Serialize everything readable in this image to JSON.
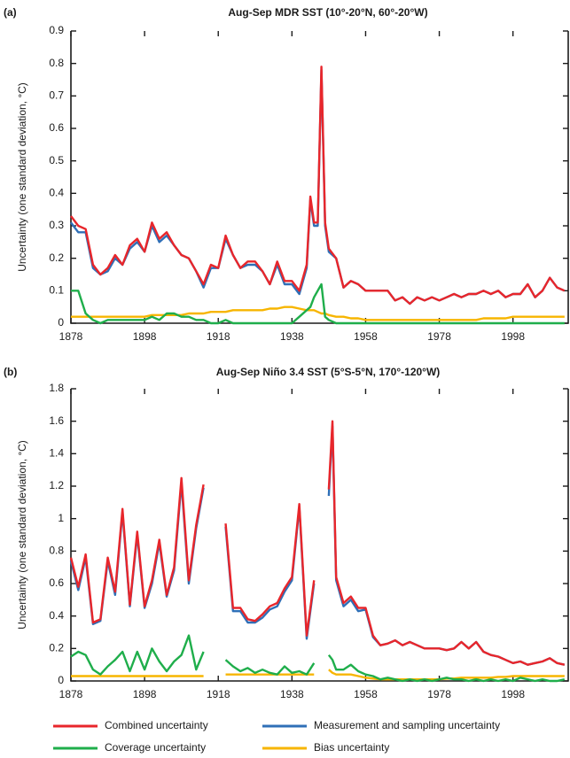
{
  "chart_data": [
    {
      "type": "line",
      "panel_label": "(a)",
      "title": "Aug-Sep MDR SST (10°-20°N, 60°-20°W)",
      "y_label": "Uncertainty (one standard deviation, °C)",
      "x": [
        1878,
        1880,
        1882,
        1884,
        1886,
        1888,
        1890,
        1892,
        1894,
        1896,
        1898,
        1900,
        1902,
        1904,
        1906,
        1908,
        1910,
        1912,
        1914,
        1916,
        1918,
        1920,
        1922,
        1924,
        1926,
        1928,
        1930,
        1932,
        1934,
        1936,
        1938,
        1940,
        1942,
        1943,
        1944,
        1945,
        1946,
        1947,
        1948,
        1950,
        1952,
        1954,
        1956,
        1958,
        1960,
        1962,
        1964,
        1966,
        1968,
        1970,
        1972,
        1974,
        1976,
        1978,
        1980,
        1982,
        1984,
        1986,
        1988,
        1990,
        1992,
        1994,
        1996,
        1998,
        2000,
        2002,
        2004,
        2006,
        2008,
        2010,
        2012
      ],
      "xlim": [
        1878,
        2013
      ],
      "xticks": [
        1878,
        1898,
        1918,
        1938,
        1958,
        1978,
        1998
      ],
      "ylim": [
        0,
        0.9
      ],
      "yticks": [
        0,
        0.1,
        0.2,
        0.3,
        0.4,
        0.5,
        0.6,
        0.7,
        0.8,
        0.9
      ],
      "series": [
        {
          "name": "Combined uncertainty",
          "color": "#e8262b",
          "values": [
            0.33,
            0.3,
            0.29,
            0.18,
            0.15,
            0.17,
            0.21,
            0.18,
            0.24,
            0.26,
            0.22,
            0.31,
            0.26,
            0.28,
            0.24,
            0.21,
            0.2,
            0.16,
            0.12,
            0.18,
            0.17,
            0.27,
            0.21,
            0.17,
            0.19,
            0.19,
            0.16,
            0.12,
            0.19,
            0.13,
            0.13,
            0.1,
            0.18,
            0.39,
            0.31,
            0.31,
            0.79,
            0.31,
            0.23,
            0.2,
            0.11,
            0.13,
            0.12,
            0.1,
            0.1,
            0.1,
            0.1,
            0.07,
            0.08,
            0.06,
            0.08,
            0.07,
            0.08,
            0.07,
            0.08,
            0.09,
            0.08,
            0.09,
            0.09,
            0.1,
            0.09,
            0.1,
            0.08,
            0.09,
            0.09,
            0.12,
            0.08,
            0.1,
            0.14,
            0.11,
            0.1
          ]
        },
        {
          "name": "Measurement and sampling uncertainty",
          "color": "#2f6fb7",
          "values": [
            0.31,
            0.28,
            0.28,
            0.17,
            0.15,
            0.16,
            0.2,
            0.18,
            0.23,
            0.25,
            0.22,
            0.3,
            0.25,
            0.27,
            0.24,
            0.21,
            0.2,
            0.16,
            0.11,
            0.17,
            0.17,
            0.26,
            0.21,
            0.17,
            0.18,
            0.18,
            0.16,
            0.12,
            0.18,
            0.12,
            0.12,
            0.09,
            0.17,
            0.38,
            0.3,
            0.3,
            0.78,
            0.3,
            0.22,
            0.2,
            0.11,
            0.13,
            0.12,
            0.1,
            0.1,
            0.1,
            0.1,
            0.07,
            0.08,
            0.06,
            0.08,
            0.07,
            0.08,
            0.07,
            0.08,
            0.09,
            0.08,
            0.09,
            0.09,
            0.1,
            0.09,
            0.1,
            0.08,
            0.09,
            0.09,
            0.12,
            0.08,
            0.1,
            0.14,
            0.11,
            0.1
          ]
        },
        {
          "name": "Coverage uncertainty",
          "color": "#1fae4b",
          "values": [
            0.1,
            0.1,
            0.03,
            0.01,
            0,
            0.01,
            0.01,
            0.01,
            0.01,
            0.01,
            0.01,
            0.02,
            0.01,
            0.03,
            0.03,
            0.02,
            0.02,
            0.01,
            0.01,
            0,
            0,
            0.01,
            0,
            0,
            0,
            0,
            0,
            0,
            0,
            0,
            0,
            0.02,
            0.04,
            0.05,
            0.08,
            0.1,
            0.12,
            0.02,
            0.01,
            0,
            0,
            0,
            0,
            0,
            0,
            0,
            0,
            0,
            0,
            0,
            0,
            0,
            0,
            0,
            0,
            0,
            0,
            0,
            0,
            0,
            0,
            0,
            0,
            0,
            0,
            0,
            0,
            0,
            0,
            0,
            0
          ]
        },
        {
          "name": "Bias uncertainty",
          "color": "#f7b500",
          "values": [
            0.02,
            0.02,
            0.02,
            0.02,
            0.02,
            0.02,
            0.02,
            0.02,
            0.02,
            0.02,
            0.02,
            0.025,
            0.025,
            0.025,
            0.025,
            0.025,
            0.03,
            0.03,
            0.03,
            0.035,
            0.035,
            0.035,
            0.04,
            0.04,
            0.04,
            0.04,
            0.04,
            0.045,
            0.045,
            0.05,
            0.05,
            0.045,
            0.04,
            0.04,
            0.04,
            0.035,
            0.03,
            0.03,
            0.025,
            0.02,
            0.02,
            0.015,
            0.015,
            0.01,
            0.01,
            0.01,
            0.01,
            0.01,
            0.01,
            0.01,
            0.01,
            0.01,
            0.01,
            0.01,
            0.01,
            0.01,
            0.01,
            0.01,
            0.01,
            0.015,
            0.015,
            0.015,
            0.015,
            0.02,
            0.02,
            0.02,
            0.02,
            0.02,
            0.02,
            0.02,
            0.02
          ]
        }
      ]
    },
    {
      "type": "line",
      "panel_label": "(b)",
      "title": "Aug-Sep Niño 3.4 SST (5°S-5°N, 170°-120°W)",
      "y_label": "Uncertainty (one standard deviation, °C)",
      "x": [
        1878,
        1880,
        1882,
        1884,
        1886,
        1888,
        1890,
        1892,
        1894,
        1896,
        1898,
        1900,
        1902,
        1904,
        1906,
        1908,
        1910,
        1912,
        1914,
        1916,
        1918,
        1920,
        1922,
        1924,
        1926,
        1928,
        1930,
        1932,
        1934,
        1936,
        1938,
        1940,
        1942,
        1944,
        1946,
        1948,
        1949,
        1950,
        1952,
        1954,
        1956,
        1958,
        1960,
        1962,
        1964,
        1966,
        1968,
        1970,
        1972,
        1974,
        1976,
        1978,
        1980,
        1982,
        1984,
        1986,
        1988,
        1990,
        1992,
        1994,
        1996,
        1998,
        2000,
        2002,
        2004,
        2006,
        2008,
        2010,
        2012
      ],
      "xlim": [
        1878,
        2013
      ],
      "xticks": [
        1878,
        1898,
        1918,
        1938,
        1958,
        1978,
        1998
      ],
      "ylim": [
        0,
        1.8
      ],
      "yticks": [
        0,
        0.2,
        0.4,
        0.6,
        0.8,
        1,
        1.2,
        1.4,
        1.6,
        1.8
      ],
      "series": [
        {
          "color": "#e8262b",
          "values": [
            0.76,
            0.58,
            0.78,
            0.36,
            0.38,
            0.76,
            0.55,
            1.06,
            0.47,
            0.92,
            0.46,
            0.62,
            0.87,
            0.53,
            0.7,
            1.25,
            0.62,
            0.96,
            1.21,
            null,
            null,
            0.97,
            0.45,
            0.45,
            0.38,
            0.37,
            0.41,
            0.46,
            0.48,
            0.57,
            0.64,
            1.09,
            0.28,
            0.62,
            null,
            1.18,
            1.6,
            0.64,
            0.48,
            0.52,
            0.45,
            0.45,
            0.28,
            0.22,
            0.23,
            0.25,
            0.22,
            0.24,
            0.22,
            0.2,
            0.2,
            0.2,
            0.19,
            0.2,
            0.24,
            0.2,
            0.24,
            0.18,
            0.16,
            0.15,
            0.13,
            0.11,
            0.12,
            0.1,
            0.11,
            0.12,
            0.14,
            0.11,
            0.1
          ]
        },
        {
          "color": "#2f6fb7",
          "values": [
            0.74,
            0.56,
            0.76,
            0.35,
            0.37,
            0.74,
            0.53,
            1.04,
            0.46,
            0.9,
            0.45,
            0.6,
            0.85,
            0.52,
            0.68,
            1.22,
            0.6,
            0.94,
            1.19,
            null,
            null,
            0.95,
            0.43,
            0.43,
            0.36,
            0.36,
            0.39,
            0.44,
            0.46,
            0.55,
            0.62,
            1.07,
            0.26,
            0.6,
            null,
            1.14,
            1.57,
            0.62,
            0.46,
            0.5,
            0.43,
            0.44,
            0.27,
            0.22,
            0.23,
            0.25,
            0.22,
            0.24,
            0.22,
            0.2,
            0.2,
            0.2,
            0.19,
            0.2,
            0.24,
            0.2,
            0.24,
            0.18,
            0.16,
            0.15,
            0.13,
            0.11,
            0.12,
            0.1,
            0.11,
            0.12,
            0.14,
            0.11,
            0.1
          ]
        },
        {
          "color": "#1fae4b",
          "values": [
            0.15,
            0.18,
            0.16,
            0.07,
            0.04,
            0.09,
            0.13,
            0.18,
            0.06,
            0.18,
            0.07,
            0.2,
            0.12,
            0.06,
            0.12,
            0.16,
            0.28,
            0.07,
            0.18,
            null,
            null,
            0.13,
            0.09,
            0.06,
            0.08,
            0.05,
            0.07,
            0.05,
            0.04,
            0.09,
            0.05,
            0.06,
            0.04,
            0.11,
            null,
            0.16,
            0.13,
            0.07,
            0.07,
            0.1,
            0.06,
            0.04,
            0.03,
            0.01,
            0.02,
            0.01,
            0,
            0.01,
            0,
            0.01,
            0,
            0.01,
            0.02,
            0.01,
            0.01,
            0,
            0.01,
            0,
            0.01,
            0,
            0.01,
            0,
            0.02,
            0.01,
            0,
            0.01,
            0,
            0,
            0.01
          ]
        },
        {
          "color": "#f7b500",
          "values": [
            0.03,
            0.03,
            0.03,
            0.03,
            0.03,
            0.03,
            0.03,
            0.03,
            0.03,
            0.03,
            0.03,
            0.03,
            0.03,
            0.03,
            0.03,
            0.03,
            0.03,
            0.03,
            0.03,
            null,
            null,
            0.04,
            0.04,
            0.04,
            0.04,
            0.04,
            0.04,
            0.04,
            0.04,
            0.04,
            0.04,
            0.04,
            0.04,
            0.04,
            null,
            0.07,
            0.05,
            0.04,
            0.04,
            0.04,
            0.03,
            0.02,
            0.015,
            0.01,
            0.01,
            0.01,
            0.01,
            0.01,
            0.01,
            0.01,
            0.01,
            0.01,
            0.015,
            0.015,
            0.02,
            0.02,
            0.02,
            0.02,
            0.02,
            0.025,
            0.025,
            0.03,
            0.03,
            0.03,
            0.03,
            0.03,
            0.03,
            0.03,
            0.03
          ]
        }
      ]
    }
  ]
}
